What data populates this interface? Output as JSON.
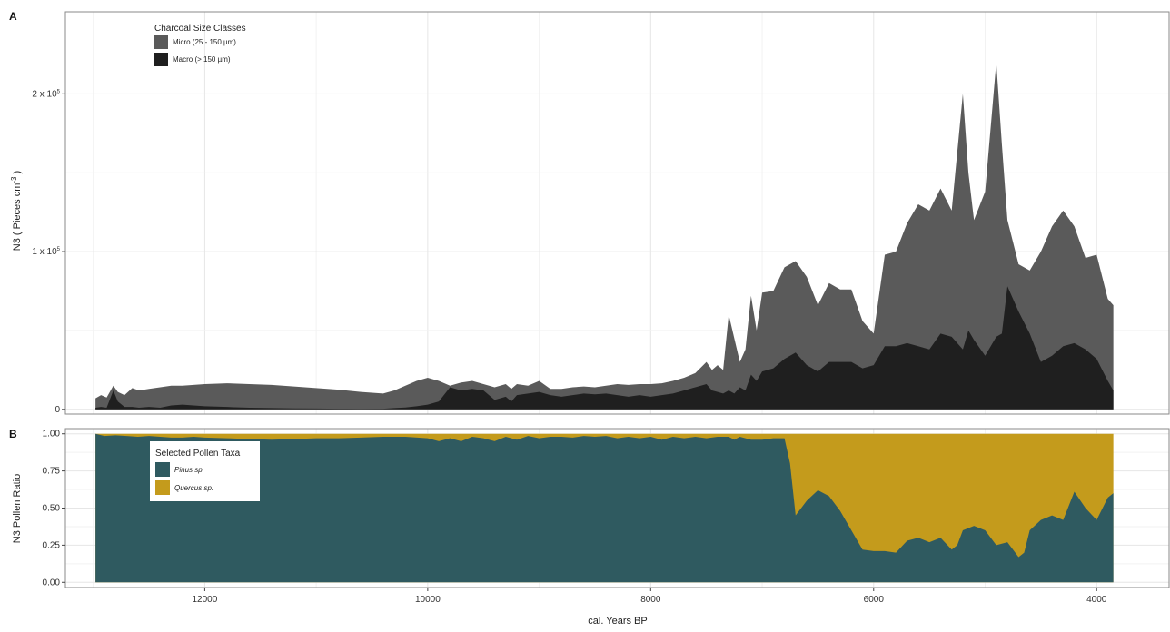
{
  "chart_data": [
    {
      "panel": "A",
      "type": "area",
      "xlabel": "cal. Years BP",
      "ylabel": "N3",
      "ylabel_unit": "( Pieces cm",
      "ylabel_sup": "-3",
      "ylabel_close": " )",
      "xlim": [
        13250,
        3350
      ],
      "ylim": [
        -3000,
        252000
      ],
      "y_ticks": [
        {
          "value": 0,
          "label": "0",
          "sup": ""
        },
        {
          "value": 100000,
          "label": "1 x 10",
          "sup": "5"
        },
        {
          "value": 200000,
          "label": "2 x 10",
          "sup": "5"
        }
      ],
      "legend": {
        "title": "Charcoal Size Classes",
        "position": "top-left",
        "items": [
          "Micro (25 - 150 µm)",
          "Macro (> 150 µm)"
        ]
      },
      "series": [
        {
          "name": "Micro (25 - 150 µm)",
          "color": "#5a5a5a",
          "x": [
            12980,
            12930,
            12880,
            12820,
            12780,
            12720,
            12650,
            12590,
            12500,
            12400,
            12300,
            12200,
            12100,
            12000,
            11800,
            11600,
            11400,
            11200,
            11000,
            10800,
            10600,
            10400,
            10300,
            10200,
            10100,
            10000,
            9900,
            9800,
            9700,
            9600,
            9500,
            9400,
            9300,
            9250,
            9200,
            9100,
            9000,
            8900,
            8800,
            8700,
            8600,
            8500,
            8400,
            8300,
            8200,
            8100,
            8000,
            7900,
            7800,
            7700,
            7600,
            7500,
            7450,
            7400,
            7350,
            7300,
            7250,
            7200,
            7150,
            7100,
            7050,
            7000,
            6900,
            6800,
            6700,
            6600,
            6500,
            6400,
            6300,
            6200,
            6100,
            6000,
            5900,
            5800,
            5700,
            5600,
            5500,
            5400,
            5300,
            5200,
            5150,
            5100,
            5000,
            4900,
            4850,
            4800,
            4700,
            4600,
            4500,
            4400,
            4300,
            4200,
            4100,
            4000,
            3900,
            3850
          ],
          "values": [
            7000,
            9000,
            7500,
            15000,
            11000,
            9000,
            13500,
            12000,
            13000,
            14000,
            15000,
            15000,
            15500,
            16000,
            16500,
            16000,
            15500,
            14500,
            13500,
            12500,
            11000,
            10000,
            12000,
            15000,
            18000,
            20000,
            18000,
            15000,
            17000,
            18000,
            16000,
            14000,
            16000,
            13000,
            16000,
            15000,
            18000,
            13000,
            13000,
            14000,
            14500,
            14000,
            15000,
            16000,
            15500,
            16000,
            16000,
            16500,
            18000,
            20000,
            23000,
            30000,
            25000,
            28000,
            25000,
            60000,
            45000,
            30000,
            38000,
            72000,
            50000,
            74000,
            75000,
            90000,
            94000,
            84000,
            66000,
            80000,
            76000,
            76000,
            56000,
            48000,
            98000,
            100000,
            118000,
            130000,
            126000,
            140000,
            126000,
            200000,
            150000,
            120000,
            138000,
            220000,
            168000,
            120000,
            92000,
            88000,
            100000,
            116000,
            126000,
            116000,
            96000,
            98000,
            70000,
            66000
          ]
        },
        {
          "name": "Macro (> 150 µm)",
          "color": "#1f1f1f",
          "x": [
            12980,
            12930,
            12880,
            12820,
            12780,
            12720,
            12650,
            12590,
            12500,
            12400,
            12300,
            12200,
            12100,
            12000,
            11800,
            11600,
            11400,
            11200,
            11000,
            10800,
            10600,
            10400,
            10300,
            10200,
            10100,
            10000,
            9900,
            9800,
            9700,
            9600,
            9500,
            9400,
            9300,
            9250,
            9200,
            9100,
            9000,
            8900,
            8800,
            8700,
            8600,
            8500,
            8400,
            8300,
            8200,
            8100,
            8000,
            7900,
            7800,
            7700,
            7600,
            7500,
            7450,
            7400,
            7350,
            7300,
            7250,
            7200,
            7150,
            7100,
            7050,
            7000,
            6900,
            6800,
            6700,
            6600,
            6500,
            6400,
            6300,
            6200,
            6100,
            6000,
            5900,
            5800,
            5700,
            5600,
            5500,
            5400,
            5300,
            5200,
            5150,
            5100,
            5000,
            4900,
            4850,
            4800,
            4700,
            4600,
            4500,
            4400,
            4300,
            4200,
            4100,
            4000,
            3900,
            3850
          ],
          "values": [
            1000,
            1500,
            1000,
            12000,
            5000,
            1500,
            1500,
            1000,
            1500,
            1000,
            2500,
            3000,
            2500,
            2000,
            1500,
            1000,
            800,
            600,
            500,
            400,
            300,
            400,
            800,
            1200,
            2000,
            3000,
            5000,
            14000,
            12000,
            13000,
            12000,
            6000,
            8000,
            5000,
            9000,
            10000,
            11000,
            9000,
            8000,
            9000,
            10000,
            9500,
            10000,
            9000,
            8000,
            9000,
            8000,
            9000,
            10000,
            12000,
            14000,
            16000,
            12000,
            11000,
            10000,
            12000,
            10000,
            14000,
            12000,
            22000,
            18000,
            24000,
            26000,
            32000,
            36000,
            28000,
            24000,
            30000,
            30000,
            30000,
            26000,
            28000,
            40000,
            40000,
            42000,
            40000,
            38000,
            48000,
            46000,
            38000,
            50000,
            44000,
            34000,
            46000,
            48000,
            78000,
            62000,
            48000,
            30000,
            34000,
            40000,
            42000,
            38000,
            32000,
            18000,
            12000
          ]
        }
      ]
    },
    {
      "panel": "B",
      "type": "area",
      "xlabel": "cal. Years BP",
      "ylabel": "N3 Pollen Ratio",
      "xlim": [
        13250,
        3350
      ],
      "ylim": [
        -0.035,
        1.035
      ],
      "y_ticks": [
        {
          "value": 0,
          "label": "0.00"
        },
        {
          "value": 0.25,
          "label": "0.25"
        },
        {
          "value": 0.5,
          "label": "0.50"
        },
        {
          "value": 0.75,
          "label": "0.75"
        },
        {
          "value": 1.0,
          "label": "1.00"
        }
      ],
      "x_ticks": [
        {
          "value": 12000,
          "label": "12000"
        },
        {
          "value": 10000,
          "label": "10000"
        },
        {
          "value": 8000,
          "label": "8000"
        },
        {
          "value": 6000,
          "label": "6000"
        },
        {
          "value": 4000,
          "label": "4000"
        }
      ],
      "legend": {
        "title": "Selected Pollen Taxa",
        "position": "top-left",
        "items": [
          "Pinus sp.",
          "Quercus sp."
        ]
      },
      "series": [
        {
          "name": "Pinus sp.",
          "color": "#2f5a60",
          "x": [
            12980,
            12900,
            12800,
            12700,
            12600,
            12500,
            12400,
            12300,
            12200,
            12100,
            12000,
            11800,
            11600,
            11400,
            11200,
            11000,
            10800,
            10600,
            10400,
            10200,
            10000,
            9900,
            9800,
            9700,
            9600,
            9500,
            9400,
            9300,
            9200,
            9100,
            9000,
            8900,
            8800,
            8700,
            8600,
            8500,
            8400,
            8300,
            8200,
            8100,
            8000,
            7900,
            7800,
            7700,
            7600,
            7500,
            7400,
            7300,
            7250,
            7200,
            7150,
            7100,
            7000,
            6900,
            6850,
            6800,
            6750,
            6700,
            6600,
            6500,
            6400,
            6300,
            6200,
            6100,
            6000,
            5900,
            5800,
            5700,
            5600,
            5500,
            5400,
            5300,
            5250,
            5200,
            5100,
            5000,
            4900,
            4800,
            4700,
            4650,
            4600,
            4500,
            4400,
            4300,
            4200,
            4100,
            4000,
            3900,
            3850
          ],
          "values": [
            1.0,
            0.985,
            0.99,
            0.985,
            0.98,
            0.985,
            0.98,
            0.975,
            0.975,
            0.98,
            0.975,
            0.97,
            0.965,
            0.96,
            0.965,
            0.97,
            0.97,
            0.975,
            0.98,
            0.98,
            0.97,
            0.95,
            0.97,
            0.95,
            0.98,
            0.97,
            0.95,
            0.98,
            0.96,
            0.985,
            0.97,
            0.98,
            0.98,
            0.975,
            0.985,
            0.98,
            0.985,
            0.97,
            0.98,
            0.97,
            0.98,
            0.96,
            0.98,
            0.97,
            0.98,
            0.97,
            0.98,
            0.98,
            0.96,
            0.98,
            0.97,
            0.96,
            0.96,
            0.97,
            0.97,
            0.97,
            0.8,
            0.45,
            0.55,
            0.62,
            0.58,
            0.48,
            0.35,
            0.22,
            0.21,
            0.21,
            0.2,
            0.28,
            0.3,
            0.27,
            0.3,
            0.22,
            0.25,
            0.35,
            0.38,
            0.35,
            0.25,
            0.27,
            0.17,
            0.2,
            0.35,
            0.42,
            0.45,
            0.42,
            0.61,
            0.5,
            0.42,
            0.57,
            0.6
          ]
        },
        {
          "name": "Quercus sp.",
          "color": "#c49b1c",
          "note_stacked_on_top_of": "Pinus sp."
        }
      ]
    }
  ]
}
